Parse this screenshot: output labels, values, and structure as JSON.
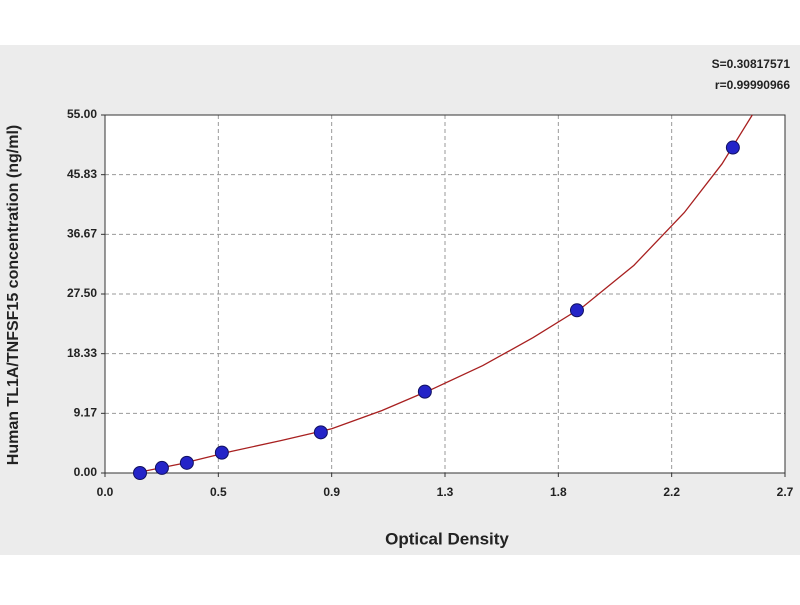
{
  "chart_data": {
    "type": "scatter",
    "xlabel": "Optical Density",
    "ylabel": "Human TL1A/TNFSF15 concentration (ng/ml)",
    "annotations": [
      "S=0.30817571",
      "r=0.99990966"
    ],
    "xlim": [
      0,
      2.7
    ],
    "ylim": [
      0,
      55
    ],
    "xticks": [
      {
        "value": 0,
        "label": "0.0"
      },
      {
        "value": 0.45,
        "label": "0.5"
      },
      0.9,
      {
        "value": 1.35,
        "label": "1.3"
      },
      1.8,
      {
        "value": 2.25,
        "label": "2.2"
      },
      2.7
    ],
    "yticks": [
      {
        "value": 0,
        "label": "0.00"
      },
      {
        "value": 9.1667,
        "label": "9.17"
      },
      {
        "value": 18.333,
        "label": "18.33"
      },
      {
        "value": 27.5,
        "label": "27.50"
      },
      {
        "value": 36.667,
        "label": "36.67"
      },
      {
        "value": 45.833,
        "label": "45.83"
      },
      {
        "value": 55,
        "label": "55.00"
      }
    ],
    "grid": true,
    "points": {
      "color": "#2424c8",
      "x": [
        0.139,
        0.226,
        0.325,
        0.464,
        0.857,
        1.27,
        1.874,
        2.493
      ],
      "y": [
        0,
        0.78,
        1.56,
        3.13,
        6.25,
        12.5,
        25,
        50
      ]
    },
    "fit_curve": {
      "color": "#a82020",
      "x": [
        0.12,
        0.3,
        0.5,
        0.7,
        0.9,
        1.1,
        1.3,
        1.5,
        1.7,
        1.9,
        2.1,
        2.3,
        2.45,
        2.57
      ],
      "y": [
        0,
        1.4,
        3.3,
        5.0,
        6.8,
        9.6,
        12.9,
        16.5,
        20.8,
        25.6,
        31.9,
        40.0,
        47.5,
        55
      ]
    }
  }
}
